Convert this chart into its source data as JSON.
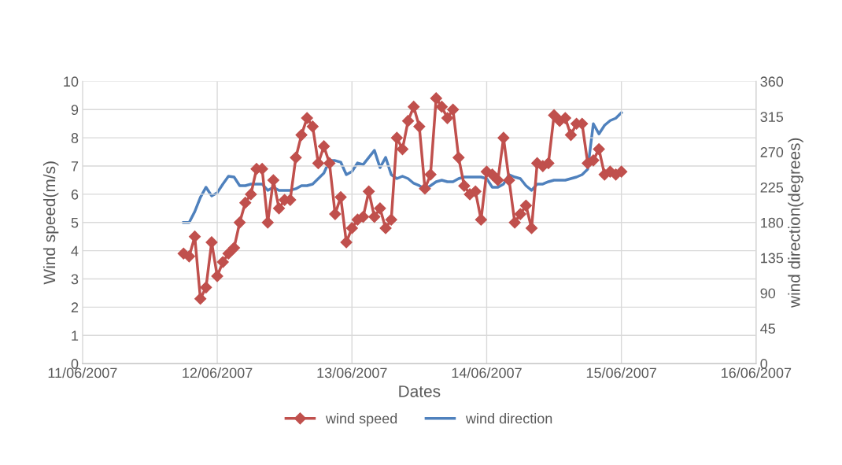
{
  "chart_data": {
    "type": "line",
    "xlabel": "Dates",
    "ylabel": "Wind speed(m/s)",
    "y2label": "wind direction(degrees)",
    "x": [
      "2007-06-11T18:00",
      "2007-06-11T19:00",
      "2007-06-11T20:00",
      "2007-06-11T21:00",
      "2007-06-11T22:00",
      "2007-06-11T23:00",
      "2007-06-12T00:00",
      "2007-06-12T01:00",
      "2007-06-12T02:00",
      "2007-06-12T03:00",
      "2007-06-12T04:00",
      "2007-06-12T05:00",
      "2007-06-12T06:00",
      "2007-06-12T07:00",
      "2007-06-12T08:00",
      "2007-06-12T09:00",
      "2007-06-12T10:00",
      "2007-06-12T11:00",
      "2007-06-12T12:00",
      "2007-06-12T13:00",
      "2007-06-12T14:00",
      "2007-06-12T15:00",
      "2007-06-12T16:00",
      "2007-06-12T17:00",
      "2007-06-12T18:00",
      "2007-06-12T19:00",
      "2007-06-12T20:00",
      "2007-06-12T21:00",
      "2007-06-12T22:00",
      "2007-06-12T23:00",
      "2007-06-13T00:00",
      "2007-06-13T01:00",
      "2007-06-13T02:00",
      "2007-06-13T03:00",
      "2007-06-13T04:00",
      "2007-06-13T05:00",
      "2007-06-13T06:00",
      "2007-06-13T07:00",
      "2007-06-13T08:00",
      "2007-06-13T09:00",
      "2007-06-13T10:00",
      "2007-06-13T11:00",
      "2007-06-13T12:00",
      "2007-06-13T13:00",
      "2007-06-13T14:00",
      "2007-06-13T15:00",
      "2007-06-13T16:00",
      "2007-06-13T17:00",
      "2007-06-13T18:00",
      "2007-06-13T19:00",
      "2007-06-13T20:00",
      "2007-06-13T21:00",
      "2007-06-13T22:00",
      "2007-06-13T23:00",
      "2007-06-14T00:00",
      "2007-06-14T01:00",
      "2007-06-14T02:00",
      "2007-06-14T03:00",
      "2007-06-14T04:00",
      "2007-06-14T05:00",
      "2007-06-14T06:00",
      "2007-06-14T07:00",
      "2007-06-14T08:00",
      "2007-06-14T09:00",
      "2007-06-14T10:00",
      "2007-06-14T11:00",
      "2007-06-14T12:00",
      "2007-06-14T13:00",
      "2007-06-14T14:00",
      "2007-06-14T15:00",
      "2007-06-14T16:00",
      "2007-06-14T17:00",
      "2007-06-14T18:00",
      "2007-06-14T19:00",
      "2007-06-14T20:00",
      "2007-06-14T21:00",
      "2007-06-14T22:00",
      "2007-06-14T23:00",
      "2007-06-15T00:00"
    ],
    "series": [
      {
        "name": "wind speed",
        "color": "#c0504d",
        "marker": "diamond",
        "values": [
          3.9,
          3.8,
          4.5,
          2.3,
          2.7,
          4.3,
          3.1,
          3.6,
          3.9,
          4.1,
          5.0,
          5.7,
          6.0,
          6.9,
          6.9,
          5.0,
          6.5,
          5.5,
          5.8,
          5.8,
          7.3,
          8.1,
          8.7,
          8.4,
          7.1,
          7.7,
          7.1,
          5.3,
          5.9,
          4.3,
          4.8,
          5.1,
          5.2,
          6.1,
          5.2,
          5.5,
          4.8,
          5.1,
          8.0,
          7.6,
          8.6,
          9.1,
          8.4,
          6.2,
          6.7,
          9.4,
          9.1,
          8.7,
          9.0,
          7.3,
          6.3,
          6.0,
          6.1,
          5.1,
          6.8,
          6.7,
          6.5,
          8.0,
          6.5,
          5.0,
          5.3,
          5.6,
          4.8,
          7.1,
          7.0,
          7.1,
          8.8,
          8.6,
          8.7,
          8.1,
          8.5,
          8.5,
          7.1,
          7.2,
          7.6,
          6.7,
          6.8,
          6.7,
          6.8
        ]
      },
      {
        "name": "wind direction",
        "color": "#4f81bd",
        "axis": "y2",
        "marker": "none",
        "values": [
          180,
          180,
          194,
          212,
          225,
          214,
          218,
          229,
          239,
          238,
          227,
          227,
          229,
          229,
          229,
          221,
          225,
          221,
          221,
          221,
          223,
          227,
          227,
          229,
          236,
          243,
          259,
          259,
          257,
          241,
          245,
          256,
          254,
          263,
          272,
          250,
          263,
          241,
          236,
          239,
          236,
          230,
          227,
          223,
          227,
          232,
          234,
          232,
          232,
          236,
          238,
          238,
          238,
          238,
          236,
          225,
          225,
          229,
          241,
          238,
          236,
          227,
          221,
          229,
          229,
          232,
          234,
          234,
          234,
          236,
          238,
          241,
          248,
          306,
          293,
          304,
          310,
          313,
          320
        ]
      }
    ],
    "xlim": [
      "2007-06-11",
      "2007-06-16"
    ],
    "xticks": [
      {
        "value": "2007-06-11",
        "label": "11/06/2007"
      },
      {
        "value": "2007-06-12",
        "label": "12/06/2007"
      },
      {
        "value": "2007-06-13",
        "label": "13/06/2007"
      },
      {
        "value": "2007-06-14",
        "label": "14/06/2007"
      },
      {
        "value": "2007-06-15",
        "label": "15/06/2007"
      },
      {
        "value": "2007-06-16",
        "label": "16/06/2007"
      }
    ],
    "ylim": [
      0,
      10
    ],
    "yticks": [
      0,
      1,
      2,
      3,
      4,
      5,
      6,
      7,
      8,
      9,
      10
    ],
    "y2lim": [
      0,
      360
    ],
    "y2ticks": [
      0,
      45,
      90,
      135,
      180,
      225,
      270,
      315,
      360
    ],
    "grid": true,
    "legend": "bottom",
    "line_style": "solid"
  }
}
